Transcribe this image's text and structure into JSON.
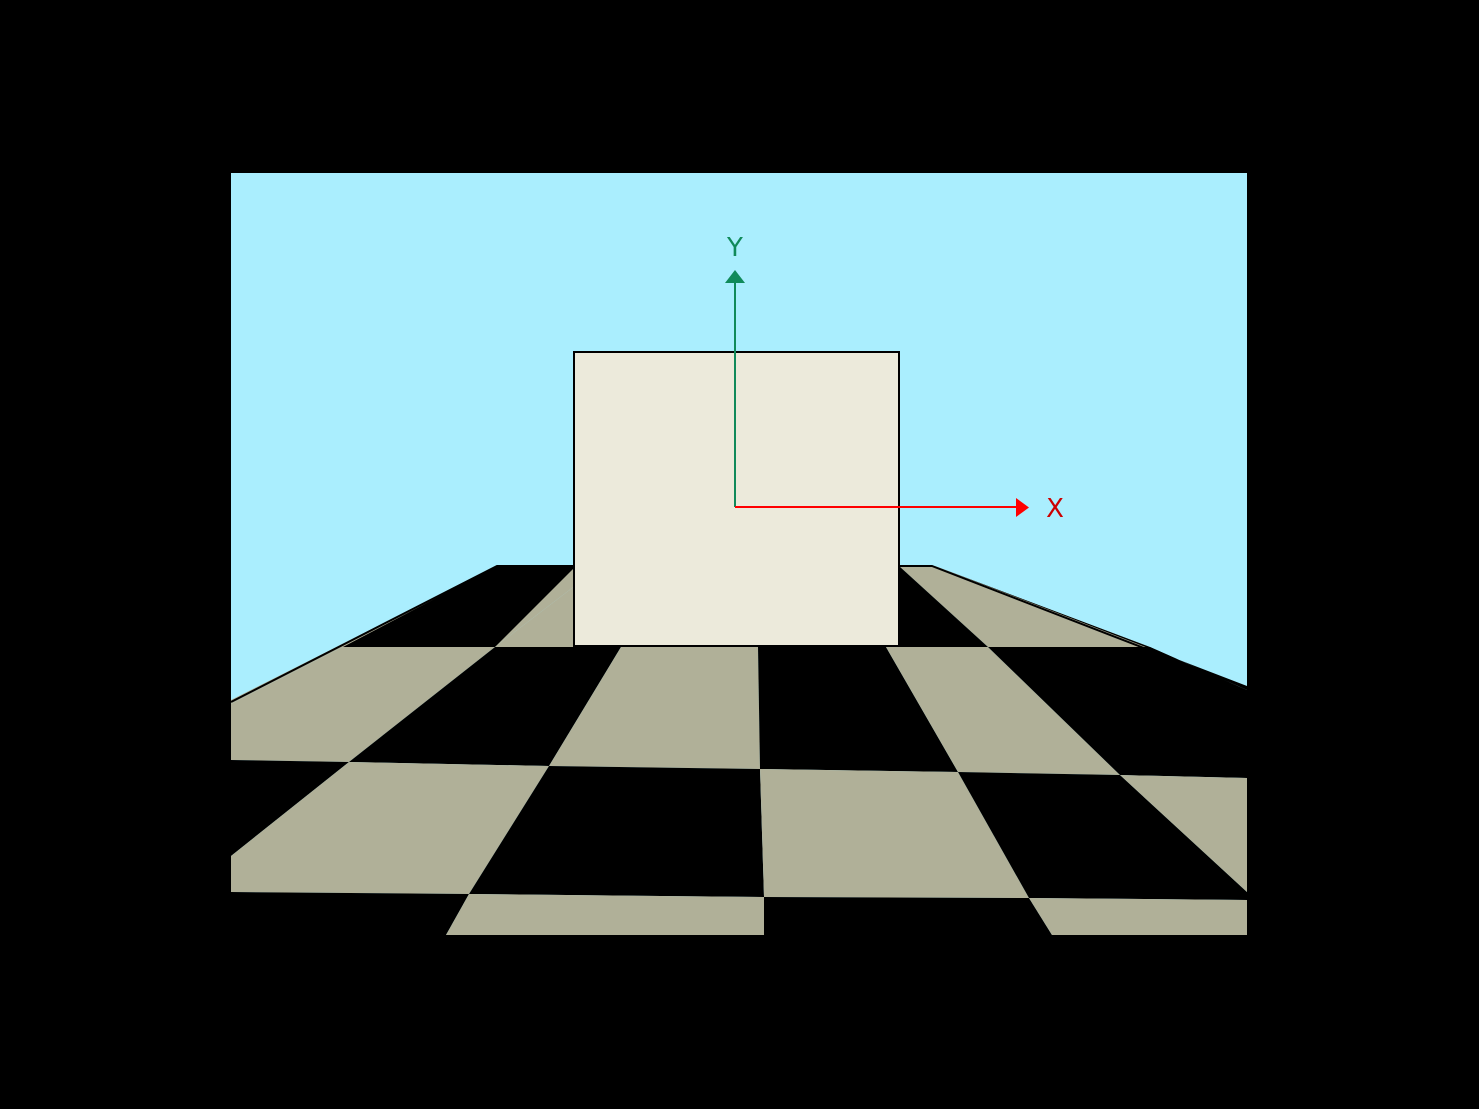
{
  "colors": {
    "background": "#000000",
    "sky": "#aaeefe",
    "floor_light": "#b0b098",
    "floor_dark": "#000000",
    "cube_face": "#eceadb",
    "x_axis": "#ff0000",
    "y_axis": "#108a5a"
  },
  "axes": {
    "x_label": "X",
    "y_label": "Y"
  }
}
